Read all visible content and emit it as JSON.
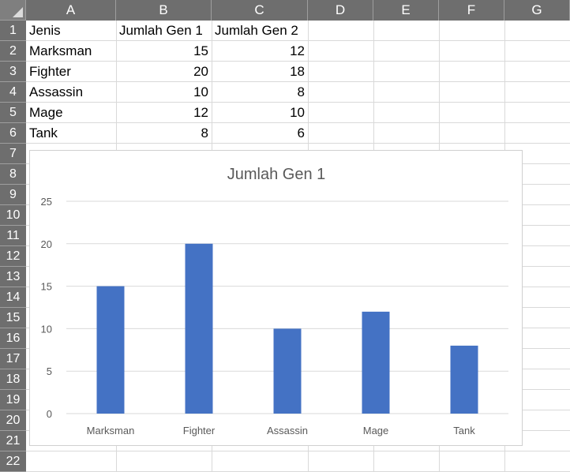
{
  "columns": [
    "A",
    "B",
    "C",
    "D",
    "E",
    "F",
    "G"
  ],
  "rows": [
    "1",
    "2",
    "3",
    "4",
    "5",
    "6",
    "7",
    "8",
    "9",
    "10",
    "11",
    "12",
    "13",
    "14",
    "15",
    "16",
    "17",
    "18",
    "19",
    "20",
    "21",
    "22"
  ],
  "cells": [
    [
      "Jenis",
      "Jumlah Gen 1",
      "Jumlah Gen 2"
    ],
    [
      "Marksman",
      "15",
      "12"
    ],
    [
      "Fighter",
      "20",
      "18"
    ],
    [
      "Assassin",
      "10",
      "8"
    ],
    [
      "Mage",
      "12",
      "10"
    ],
    [
      "Tank",
      "8",
      "6"
    ]
  ],
  "chart_data": {
    "type": "bar",
    "title": "Jumlah Gen 1",
    "categories": [
      "Marksman",
      "Fighter",
      "Assassin",
      "Mage",
      "Tank"
    ],
    "values": [
      15,
      20,
      10,
      12,
      8
    ],
    "yticks": [
      "0",
      "5",
      "10",
      "15",
      "20",
      "25"
    ],
    "ylim": [
      0,
      25
    ],
    "grid": true,
    "bar_color": "#4472c4",
    "gridline_color": "#d9d9d9"
  }
}
